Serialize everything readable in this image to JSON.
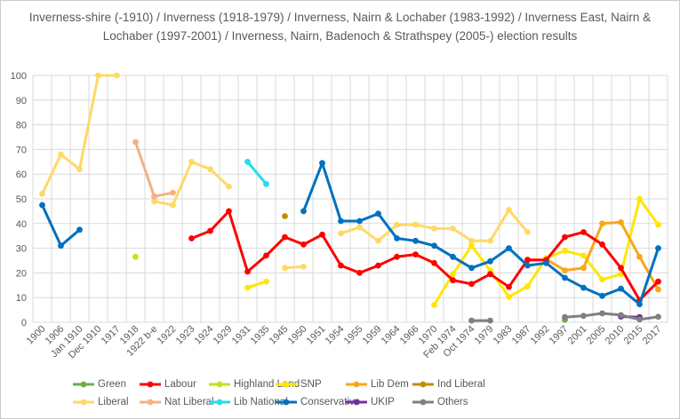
{
  "chart_data": {
    "type": "line",
    "title": "Inverness-shire (-1910) / Inverness (1918-1979) / Inverness, Nairn & Lochaber (1983-1992) / Inverness East, Nairn & Lochaber (1997-2001) / Inverness, Nairn, Badenoch & Strathspey (2005-) election results",
    "xlabel": "",
    "ylabel": "",
    "ylim": [
      0,
      100
    ],
    "ytick_step": 10,
    "grid": true,
    "legend_position": "bottom",
    "x_tick_rotation": -45,
    "categories": [
      "1900",
      "1906",
      "Jan 1910",
      "Dec 1910",
      "1917",
      "1918",
      "1922 b-e",
      "1922",
      "1923",
      "1924",
      "1929",
      "1931",
      "1935",
      "1945",
      "1950",
      "1951",
      "1954",
      "1955",
      "1959",
      "1964",
      "1966",
      "1970",
      "Feb 1974",
      "Oct 1974",
      "1979",
      "1983",
      "1987",
      "1992",
      "1997",
      "2001",
      "2005",
      "2010",
      "2015",
      "2017"
    ],
    "series": [
      {
        "name": "Green",
        "color": "#70AD47",
        "values": [
          null,
          null,
          null,
          null,
          null,
          null,
          null,
          null,
          null,
          null,
          null,
          null,
          null,
          null,
          null,
          null,
          null,
          null,
          null,
          null,
          null,
          null,
          null,
          null,
          null,
          null,
          null,
          null,
          1,
          null,
          null,
          null,
          null,
          null
        ]
      },
      {
        "name": "Labour",
        "color": "#FF0000",
        "values": [
          null,
          null,
          null,
          null,
          null,
          null,
          null,
          null,
          34,
          37,
          45,
          20.5,
          27,
          34.5,
          31.5,
          35.5,
          23,
          20,
          23,
          26.5,
          27.5,
          24,
          17,
          15.5,
          19.5,
          14.3,
          25.3,
          25.2,
          34.5,
          36.5,
          31.5,
          22,
          9,
          16.5
        ]
      },
      {
        "name": "Highland Land",
        "color": "#C5E021",
        "values": [
          null,
          null,
          null,
          null,
          null,
          26.5,
          null,
          null,
          null,
          null,
          null,
          null,
          null,
          null,
          null,
          null,
          null,
          null,
          null,
          null,
          null,
          null,
          null,
          null,
          null,
          null,
          null,
          null,
          null,
          null,
          null,
          null,
          null,
          null
        ]
      },
      {
        "name": "SNP",
        "color": "#FFE600",
        "values": [
          null,
          null,
          null,
          null,
          null,
          null,
          null,
          null,
          null,
          null,
          null,
          14,
          16.5,
          null,
          null,
          null,
          null,
          null,
          null,
          null,
          null,
          7,
          19.5,
          31,
          21,
          10.3,
          14.5,
          26,
          29,
          27,
          17.3,
          19.5,
          50,
          39.5
        ]
      },
      {
        "name": "Lib Dem",
        "color": "#FAA61A",
        "values": [
          null,
          null,
          null,
          null,
          null,
          null,
          null,
          null,
          null,
          null,
          null,
          null,
          null,
          null,
          null,
          null,
          null,
          null,
          null,
          null,
          null,
          null,
          null,
          null,
          null,
          null,
          null,
          25.5,
          21,
          22,
          40,
          40.5,
          26.5,
          13.3
        ]
      },
      {
        "name": "Ind Liberal",
        "color": "#BF8F00",
        "values": [
          null,
          null,
          null,
          null,
          null,
          null,
          null,
          null,
          null,
          null,
          null,
          null,
          null,
          43,
          null,
          null,
          null,
          null,
          null,
          null,
          null,
          null,
          null,
          null,
          null,
          null,
          null,
          null,
          null,
          null,
          null,
          null,
          null,
          null
        ]
      },
      {
        "name": "Liberal",
        "color": "#FFD966",
        "values": [
          52,
          68,
          62,
          100,
          100,
          null,
          49,
          47.5,
          65,
          62,
          55,
          null,
          null,
          22,
          22.5,
          null,
          36,
          38.5,
          33,
          39.5,
          39.5,
          38,
          38,
          33,
          33,
          45.5,
          36.5,
          null,
          null,
          null,
          null,
          null,
          null,
          null
        ]
      },
      {
        "name": "Nat Liberal",
        "color": "#F4B183",
        "values": [
          null,
          null,
          null,
          null,
          null,
          73,
          51,
          52.5,
          null,
          null,
          null,
          null,
          null,
          null,
          null,
          null,
          null,
          null,
          null,
          null,
          null,
          null,
          null,
          null,
          null,
          null,
          null,
          null,
          null,
          null,
          null,
          null,
          null,
          null
        ]
      },
      {
        "name": "Lib National",
        "color": "#22DEEE",
        "values": [
          null,
          null,
          null,
          null,
          null,
          null,
          null,
          null,
          null,
          null,
          null,
          65,
          56,
          null,
          null,
          null,
          null,
          null,
          null,
          null,
          null,
          null,
          null,
          null,
          null,
          null,
          null,
          null,
          null,
          null,
          null,
          null,
          null,
          null
        ]
      },
      {
        "name": "Conservative",
        "color": "#0070C0",
        "values": [
          47.5,
          31,
          37.5,
          null,
          null,
          null,
          null,
          null,
          null,
          null,
          null,
          null,
          null,
          null,
          45,
          64.5,
          41,
          41,
          44,
          34,
          33,
          31,
          26.5,
          22,
          24.7,
          30,
          23,
          24,
          18,
          14,
          10.7,
          13.6,
          7.3,
          30
        ]
      },
      {
        "name": "UKIP",
        "color": "#7030A0",
        "values": [
          null,
          null,
          null,
          null,
          null,
          null,
          null,
          null,
          null,
          null,
          null,
          null,
          null,
          null,
          null,
          null,
          null,
          null,
          null,
          null,
          null,
          null,
          null,
          null,
          null,
          null,
          null,
          null,
          null,
          null,
          null,
          2.3,
          2.1,
          null
        ]
      },
      {
        "name": "Others",
        "color": "#808080",
        "values": [
          null,
          null,
          null,
          null,
          null,
          null,
          null,
          null,
          null,
          null,
          null,
          null,
          null,
          null,
          null,
          null,
          null,
          null,
          null,
          null,
          null,
          null,
          null,
          0.7,
          0.7,
          null,
          null,
          null,
          2.1,
          2.6,
          3.6,
          2.9,
          1.1,
          2.2
        ]
      }
    ],
    "y_tick_labels": [
      "0",
      "10",
      "20",
      "30",
      "40",
      "50",
      "60",
      "70",
      "80",
      "90",
      "100"
    ],
    "legend_rows": [
      [
        "Green",
        "Labour",
        "Highland Land",
        "SNP",
        "Lib Dem",
        "Ind Liberal"
      ],
      [
        "Liberal",
        "Nat Liberal",
        "Lib National",
        "Conservative",
        "UKIP",
        "Others"
      ]
    ]
  }
}
